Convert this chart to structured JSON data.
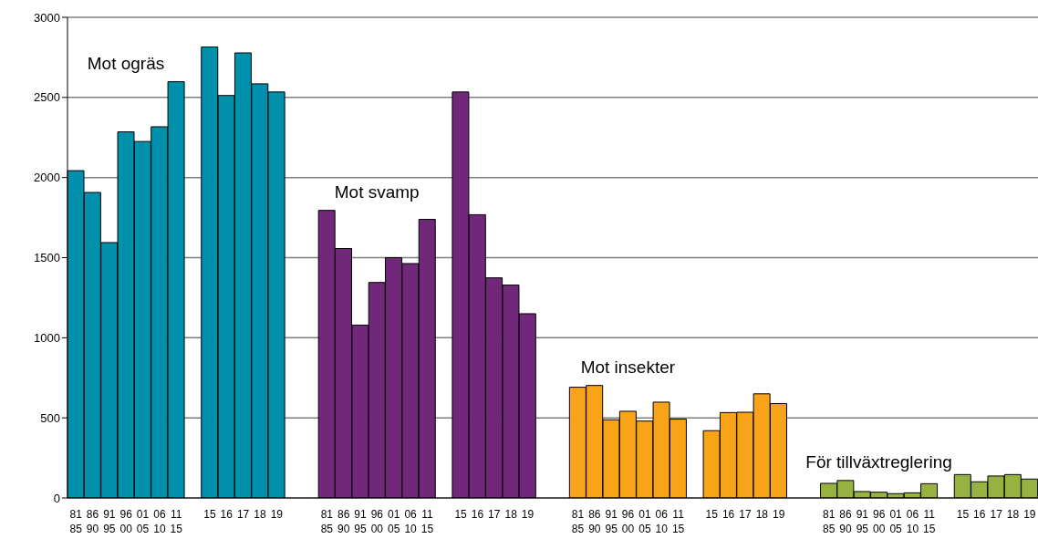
{
  "chart_data": {
    "type": "bar",
    "categories": [
      "81\n85",
      "86\n90",
      "91\n95",
      "96\n00",
      "01\n05",
      "06\n10",
      "11\n15",
      null,
      "15",
      "16",
      "17",
      "18",
      "19",
      null,
      null,
      "81\n85",
      "86\n90",
      "91\n95",
      "96\n00",
      "01\n05",
      "06\n10",
      "11\n15",
      null,
      "15",
      "16",
      "17",
      "18",
      "19",
      null,
      null,
      "81\n85",
      "86\n90",
      "91\n95",
      "96\n00",
      "01\n05",
      "06\n10",
      "11\n15",
      null,
      "15",
      "16",
      "17",
      "18",
      "19",
      null,
      null,
      "81\n85",
      "86\n90",
      "91\n95",
      "96\n00",
      "01\n05",
      "06\n10",
      "11\n15",
      null,
      "15",
      "16",
      "17",
      "18",
      "19"
    ],
    "series": [
      {
        "name": "Mot ogräs",
        "color": "#0090ab",
        "values": [
          2043,
          1907,
          1594,
          2285,
          2225,
          2317,
          2598,
          null,
          2815,
          2512,
          2778,
          2585,
          2534,
          null,
          null,
          null,
          null,
          null,
          null,
          null,
          null,
          null,
          null,
          null,
          null,
          null,
          null,
          null,
          null,
          null,
          null,
          null,
          null,
          null,
          null,
          null,
          null,
          null,
          null,
          null,
          null,
          null,
          null,
          null,
          null,
          null,
          null,
          null,
          null,
          null,
          null,
          null,
          null,
          null,
          null,
          null,
          null,
          null
        ]
      },
      {
        "name": "Mot svamp",
        "color": "#72287a",
        "values": [
          null,
          null,
          null,
          null,
          null,
          null,
          null,
          null,
          null,
          null,
          null,
          null,
          null,
          null,
          null,
          1795,
          1557,
          1079,
          1345,
          1500,
          1463,
          1739,
          null,
          2534,
          1768,
          1374,
          1329,
          1150,
          null,
          null,
          null,
          null,
          null,
          null,
          null,
          null,
          null,
          null,
          null,
          null,
          null,
          null,
          null,
          null,
          null,
          null,
          null,
          null,
          null,
          null,
          null,
          null,
          null,
          null,
          null,
          null,
          null,
          null
        ]
      },
      {
        "name": "Mot insekter",
        "color": "#f9a318",
        "values": [
          null,
          null,
          null,
          null,
          null,
          null,
          null,
          null,
          null,
          null,
          null,
          null,
          null,
          null,
          null,
          null,
          null,
          null,
          null,
          null,
          null,
          null,
          null,
          null,
          null,
          null,
          null,
          null,
          null,
          null,
          691,
          702,
          488,
          541,
          480,
          598,
          492,
          null,
          420,
          533,
          535,
          650,
          589,
          null,
          null,
          null,
          null,
          null,
          null,
          null,
          null,
          null,
          null,
          null,
          null,
          null,
          null,
          null
        ]
      },
      {
        "name": "För tillväxtreglering",
        "color": "#98b242",
        "values": [
          null,
          null,
          null,
          null,
          null,
          null,
          null,
          null,
          null,
          null,
          null,
          null,
          null,
          null,
          null,
          null,
          null,
          null,
          null,
          null,
          null,
          null,
          null,
          null,
          null,
          null,
          null,
          null,
          null,
          null,
          null,
          null,
          null,
          null,
          null,
          null,
          null,
          null,
          null,
          null,
          null,
          null,
          null,
          null,
          null,
          91,
          109,
          40,
          36,
          27,
          32,
          89,
          null,
          146,
          101,
          137,
          146,
          118
        ]
      }
    ],
    "ylim": [
      0,
      3000
    ],
    "yticks": [
      0,
      500,
      1000,
      1500,
      2000,
      2500,
      3000
    ],
    "grid": "y"
  }
}
